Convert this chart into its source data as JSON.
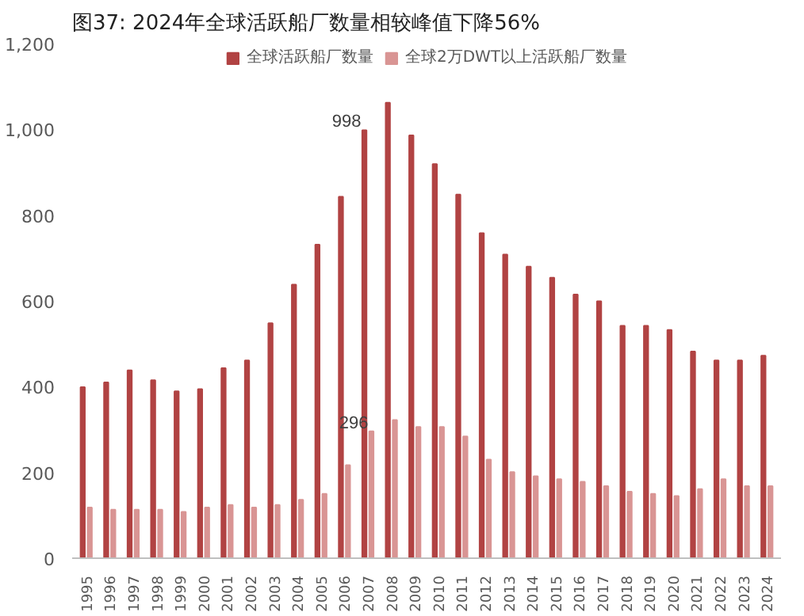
{
  "chart_data": {
    "type": "bar",
    "title": "图37:   2024年全球活跃船厂数量相较峰值下降56%",
    "categories": [
      "1995",
      "1996",
      "1997",
      "1998",
      "1999",
      "2000",
      "2001",
      "2002",
      "2003",
      "2004",
      "2005",
      "2006",
      "2007",
      "2008",
      "2009",
      "2010",
      "2011",
      "2012",
      "2013",
      "2014",
      "2015",
      "2016",
      "2017",
      "2018",
      "2019",
      "2020",
      "2021",
      "2022",
      "2023",
      "2024"
    ],
    "series": [
      {
        "name": "全球活跃船厂数量",
        "color": "#b14343",
        "values": [
          399,
          410,
          438,
          415,
          389,
          394,
          443,
          461,
          548,
          638,
          731,
          843,
          998,
          1062,
          986,
          919,
          848,
          758,
          708,
          680,
          654,
          615,
          599,
          542,
          542,
          532,
          482,
          461,
          461,
          472
        ],
        "value_labels": [
          null,
          null,
          null,
          null,
          null,
          null,
          null,
          null,
          null,
          null,
          null,
          null,
          "998",
          null,
          null,
          null,
          null,
          null,
          null,
          null,
          null,
          null,
          null,
          null,
          null,
          null,
          null,
          null,
          null,
          null
        ]
      },
      {
        "name": "全球2万DWT以上活跃船厂数量",
        "color": "#d99594",
        "values": [
          118,
          113,
          113,
          113,
          108,
          118,
          124,
          118,
          124,
          136,
          150,
          217,
          296,
          322,
          306,
          306,
          284,
          230,
          201,
          191,
          184,
          178,
          168,
          155,
          150,
          145,
          161,
          184,
          168,
          168
        ],
        "value_labels": [
          null,
          null,
          null,
          null,
          null,
          null,
          null,
          null,
          null,
          null,
          null,
          null,
          "296",
          null,
          null,
          null,
          null,
          null,
          null,
          null,
          null,
          null,
          null,
          null,
          null,
          null,
          null,
          null,
          null,
          null
        ]
      }
    ],
    "ylim": [
      0,
      1200
    ],
    "yticks": [
      0,
      200,
      400,
      600,
      {
        "value": 800,
        "label": "800"
      },
      {
        "value": 1000,
        "label": "1,000"
      },
      {
        "value": 1200,
        "label": "1,200"
      }
    ],
    "grid": false,
    "legend": "top"
  }
}
